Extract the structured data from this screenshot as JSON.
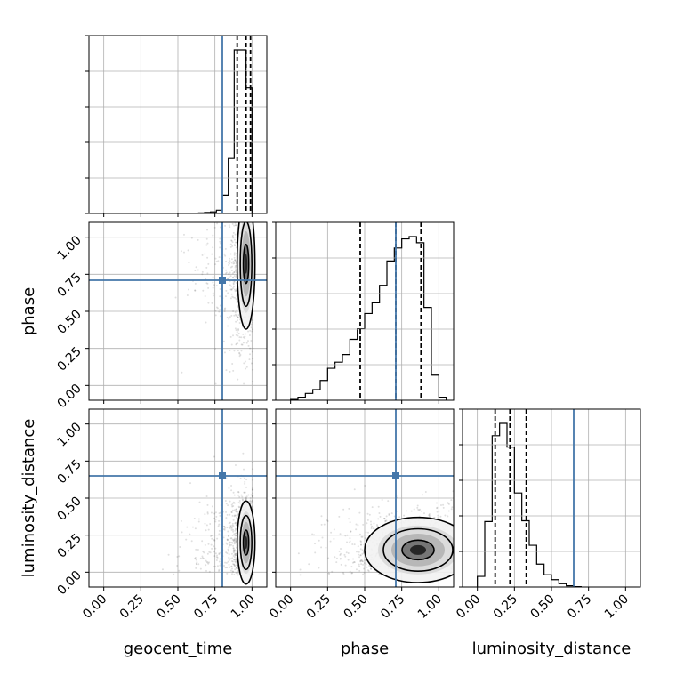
{
  "chart_data": {
    "type": "corner",
    "title": "",
    "parameters": [
      "geocent_time",
      "phase",
      "luminosity_distance"
    ],
    "axis_range": [
      -0.1,
      1.1
    ],
    "tick_labels": [
      "0.00",
      "0.25",
      "0.50",
      "0.75",
      "1.00"
    ],
    "tick_values": [
      0.0,
      0.25,
      0.5,
      0.75,
      1.0
    ],
    "grid": true,
    "truth_color": "#4477aa",
    "truths": {
      "geocent_time": 0.8,
      "phase": 0.71,
      "luminosity_distance": 0.65
    },
    "quantiles": {
      "geocent_time": [
        0.9,
        0.96,
        0.99
      ],
      "phase": [
        0.47,
        0.71,
        0.88
      ],
      "luminosity_distance": [
        0.12,
        0.22,
        0.33
      ]
    },
    "histograms": {
      "geocent_time": {
        "bins": [
          0.56,
          0.6,
          0.64,
          0.68,
          0.72,
          0.76,
          0.8,
          0.84,
          0.88,
          0.92,
          0.96,
          1.0
        ],
        "counts": [
          1,
          2,
          4,
          8,
          12,
          25,
          140,
          420,
          1250,
          1250,
          960
        ]
      },
      "phase": {
        "bins": [
          0.0,
          0.05,
          0.1,
          0.15,
          0.2,
          0.25,
          0.3,
          0.35,
          0.4,
          0.45,
          0.5,
          0.55,
          0.6,
          0.65,
          0.7,
          0.75,
          0.8,
          0.85,
          0.9,
          0.95,
          1.0,
          1.05
        ],
        "counts": [
          5,
          20,
          45,
          70,
          130,
          210,
          250,
          300,
          400,
          470,
          570,
          640,
          755,
          915,
          1000,
          1060,
          1075,
          1035,
          610,
          165,
          20
        ]
      },
      "luminosity_distance": {
        "bins": [
          0.0,
          0.05,
          0.1,
          0.15,
          0.2,
          0.25,
          0.3,
          0.35,
          0.4,
          0.45,
          0.5,
          0.55,
          0.6,
          0.65,
          0.7
        ],
        "counts": [
          130,
          800,
          1850,
          2000,
          1710,
          1150,
          810,
          510,
          280,
          150,
          90,
          40,
          15,
          5
        ]
      }
    },
    "pairs": [
      {
        "x": "geocent_time",
        "y": "phase",
        "density_center": [
          0.96,
          0.82
        ],
        "spread": [
          0.03,
          0.22
        ]
      },
      {
        "x": "geocent_time",
        "y": "luminosity_distance",
        "density_center": [
          0.96,
          0.2
        ],
        "spread": [
          0.03,
          0.14
        ]
      },
      {
        "x": "phase",
        "y": "luminosity_distance",
        "density_center": [
          0.86,
          0.15
        ],
        "spread": [
          0.18,
          0.11
        ]
      }
    ]
  }
}
